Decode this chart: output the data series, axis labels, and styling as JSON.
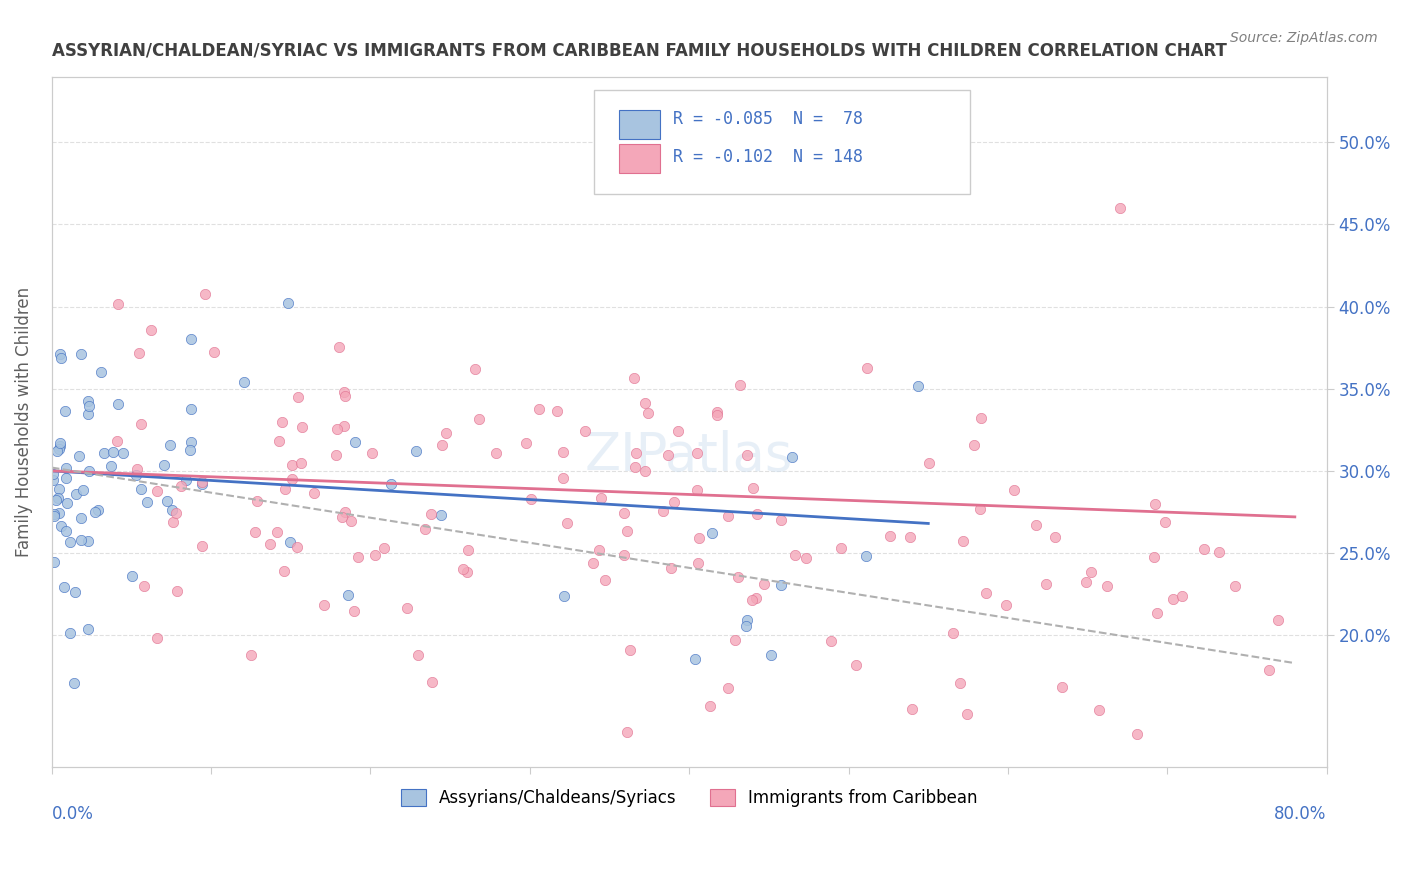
{
  "title": "ASSYRIAN/CHALDEAN/SYRIAC VS IMMIGRANTS FROM CARIBBEAN FAMILY HOUSEHOLDS WITH CHILDREN CORRELATION CHART",
  "source": "Source: ZipAtlas.com",
  "ylabel": "Family Households with Children",
  "legend_label1": "Assyrians/Chaldeans/Syriacs",
  "legend_label2": "Immigrants from Caribbean",
  "legend_r1": "R = -0.085  N =  78",
  "legend_r2": "R = -0.102  N = 148",
  "color_blue": "#a8c4e0",
  "color_pink": "#f4a7b9",
  "color_blue_dark": "#4472c4",
  "color_pink_dark": "#e07090",
  "color_dashed": "#b0b0b0",
  "xlim": [
    0.0,
    0.8
  ],
  "ylim": [
    0.12,
    0.54
  ],
  "yticks": [
    0.2,
    0.25,
    0.3,
    0.35,
    0.4,
    0.45,
    0.5
  ],
  "background_color": "#ffffff",
  "grid_color": "#e0e0e0",
  "title_color": "#404040",
  "source_color": "#808080",
  "axis_label_color": "#606060",
  "tick_color": "#4472c4"
}
